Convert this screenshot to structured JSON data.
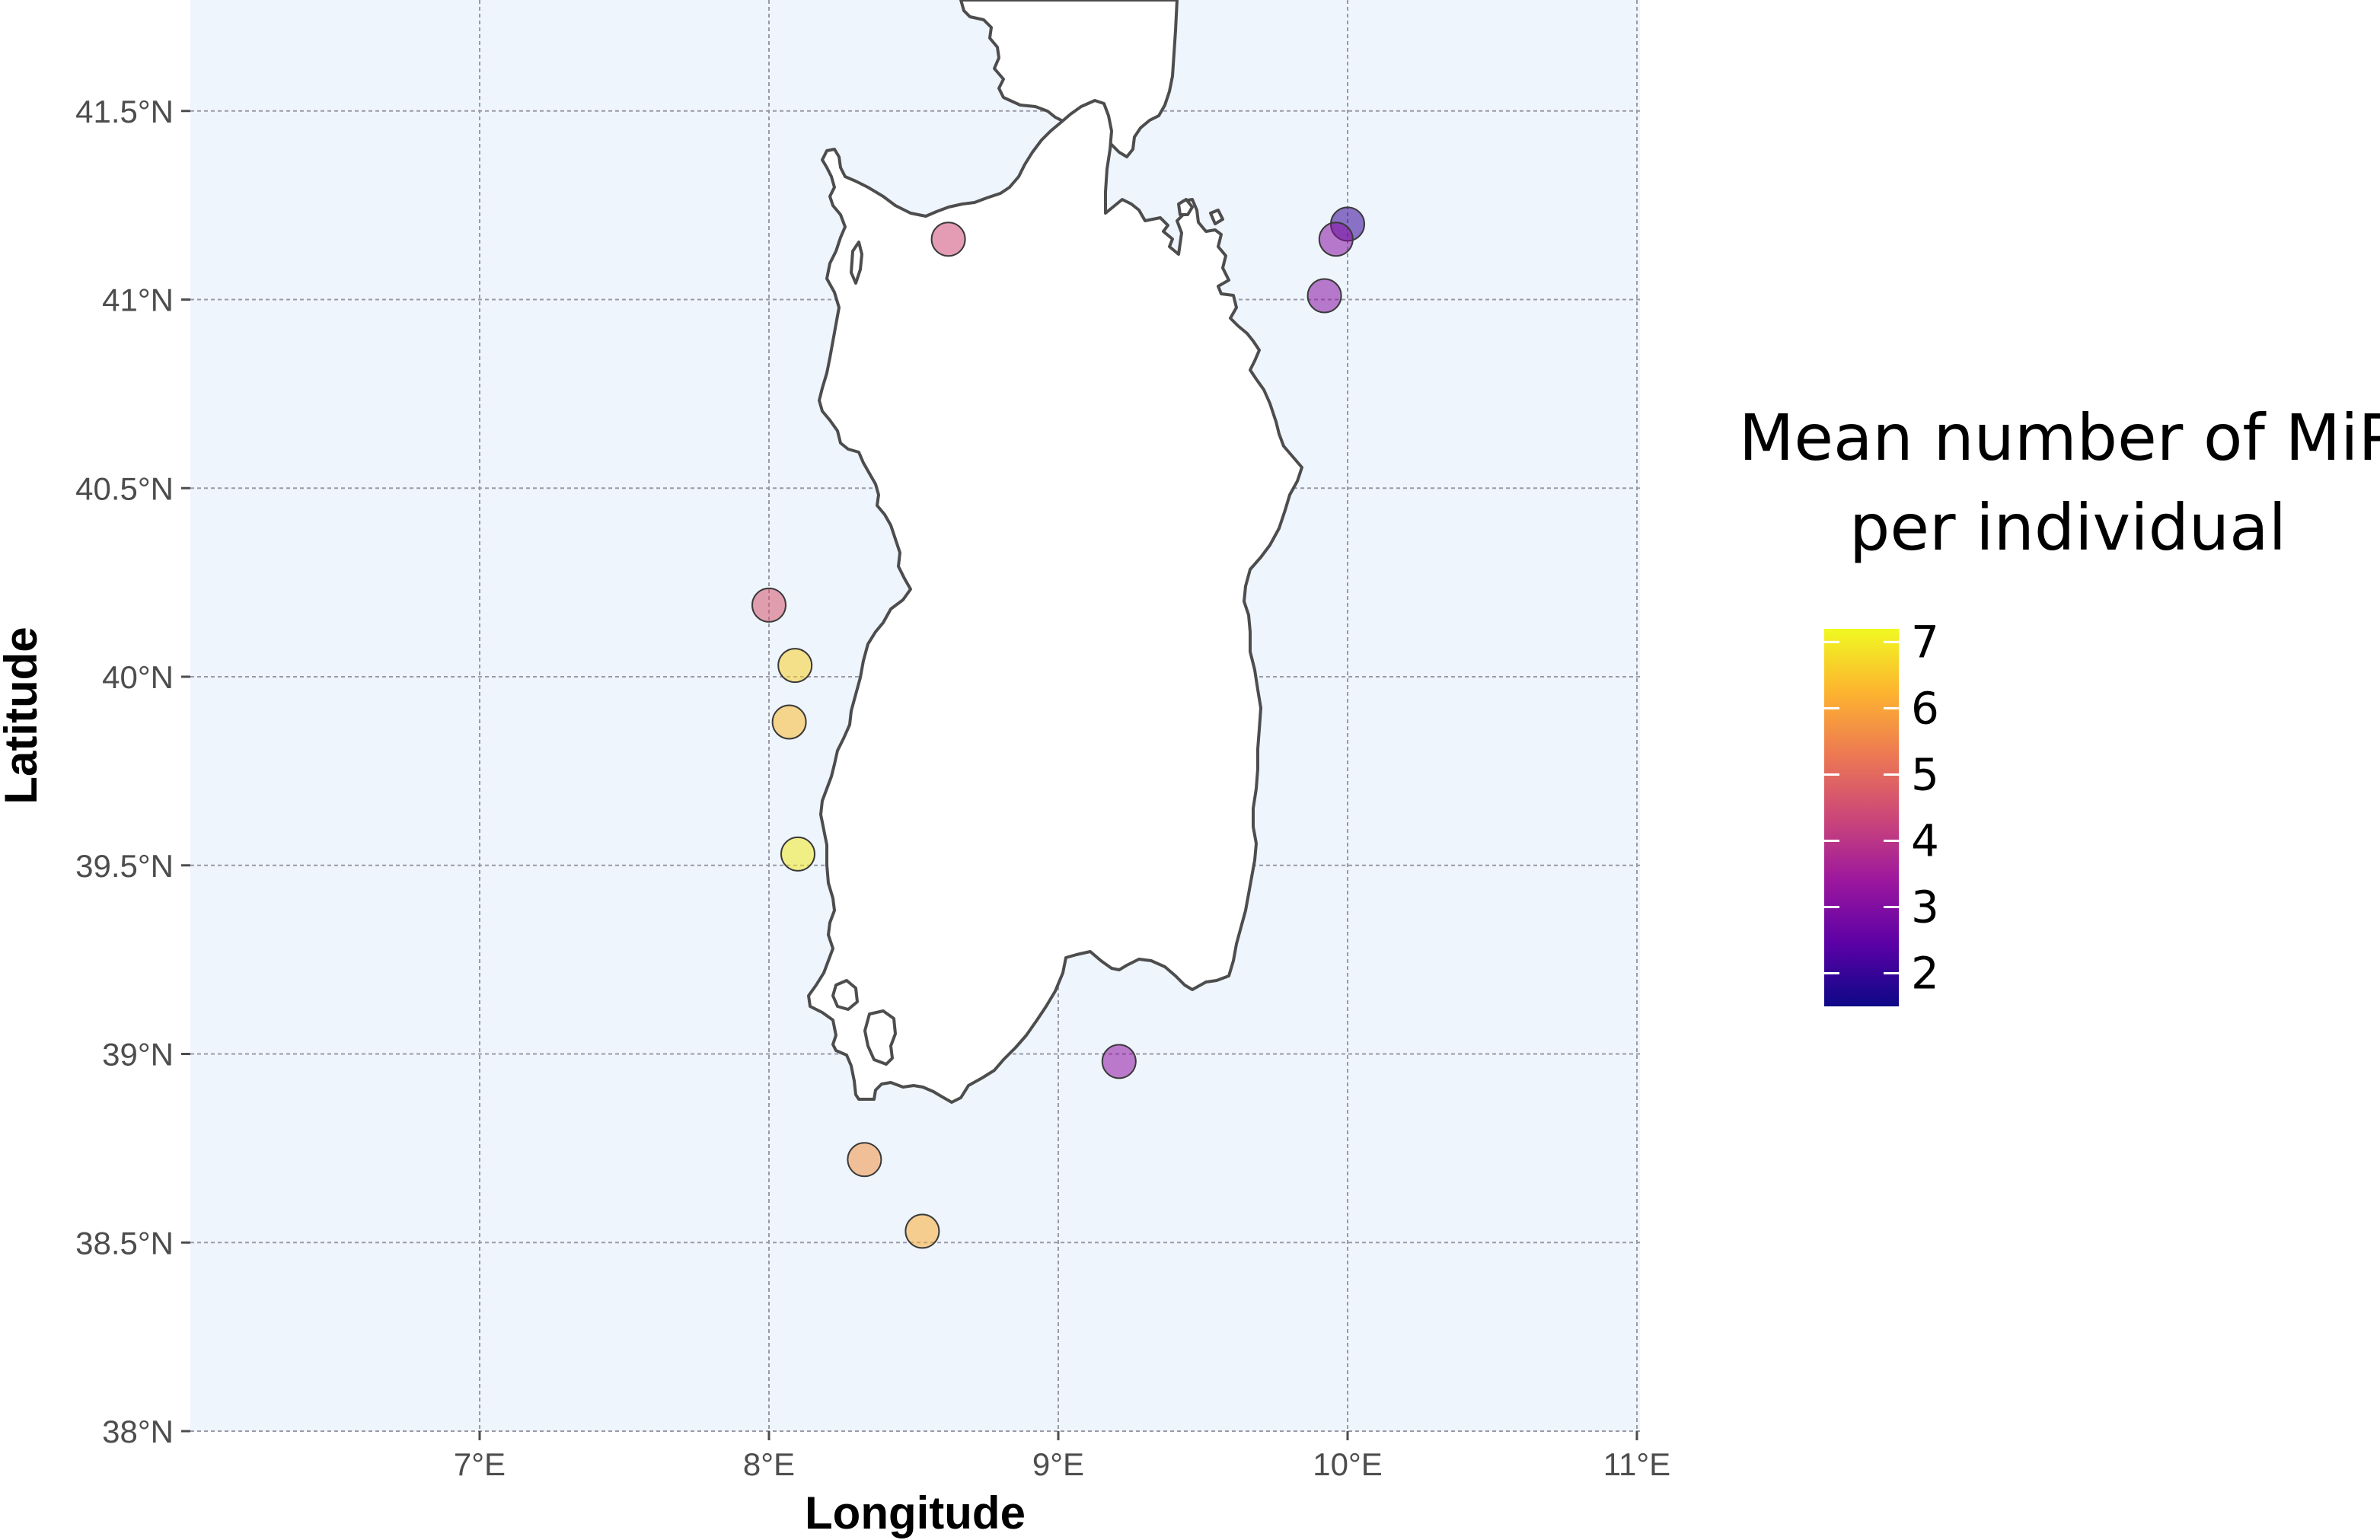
{
  "chart_data": {
    "type": "scatter",
    "title": "",
    "xlabel": "Longitude",
    "ylabel": "Latitude",
    "xlim": [
      6,
      11
    ],
    "ylim": [
      38,
      41.75
    ],
    "x_ticks": [
      7,
      8,
      9,
      10,
      11
    ],
    "x_tick_labels": [
      "7°E",
      "8°E",
      "9°E",
      "10°E",
      "11°E"
    ],
    "y_ticks": [
      38,
      38.5,
      39,
      39.5,
      40,
      40.5,
      41,
      41.5
    ],
    "y_tick_labels": [
      "38°N",
      "38.5°N",
      "39°N",
      "39.5°N",
      "40°N",
      "40.5°N",
      "41°N",
      "41.5°N"
    ],
    "grid": true,
    "background_color": "#eef5fd",
    "land_color": "#ffffff",
    "coast_color": "#4d4d4d",
    "legend": {
      "title_lines": [
        "Mean number of MiP",
        "per individual"
      ],
      "placement": "right",
      "min": 1.5,
      "max": 7.2,
      "ticks": [
        2,
        3,
        4,
        5,
        6,
        7
      ],
      "tick_labels": [
        "2",
        "3",
        "4",
        "5",
        "6",
        "7"
      ],
      "palette": [
        "#0d0887",
        "#5c01a6",
        "#9c179e",
        "#cc4778",
        "#ed7953",
        "#fdb42f",
        "#f0f921"
      ]
    },
    "points": [
      {
        "lon": 8.62,
        "lat": 41.16,
        "value": 4.4
      },
      {
        "lon": 10.0,
        "lat": 41.2,
        "value": 2.0
      },
      {
        "lon": 9.96,
        "lat": 41.16,
        "value": 3.1
      },
      {
        "lon": 9.92,
        "lat": 41.01,
        "value": 3.1
      },
      {
        "lon": 8.0,
        "lat": 40.19,
        "value": 4.6
      },
      {
        "lon": 8.09,
        "lat": 40.03,
        "value": 6.6
      },
      {
        "lon": 8.07,
        "lat": 39.88,
        "value": 6.3
      },
      {
        "lon": 8.1,
        "lat": 39.53,
        "value": 7.0
      },
      {
        "lon": 9.21,
        "lat": 38.98,
        "value": 3.2
      },
      {
        "lon": 8.33,
        "lat": 38.72,
        "value": 5.7
      },
      {
        "lon": 8.53,
        "lat": 38.53,
        "value": 6.1
      }
    ]
  }
}
